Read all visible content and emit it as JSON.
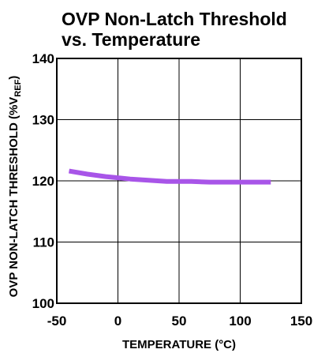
{
  "chart_data": {
    "type": "line",
    "title_lines": [
      "OVP Non-Latch Threshold",
      "vs. Temperature"
    ],
    "xlabel": "TEMPERATURE (°C)",
    "ylabel": {
      "prefix": "OVP NON-LATCH THRESHOLD (%V",
      "subscript": "REF",
      "suffix": ")"
    },
    "xlim": [
      -50,
      150
    ],
    "ylim": [
      100,
      140
    ],
    "x_ticks": [
      -50,
      0,
      50,
      100,
      150
    ],
    "y_ticks": [
      100,
      110,
      120,
      130,
      140
    ],
    "grid": true,
    "series": [
      {
        "color": "#a855e8",
        "x": [
          -40,
          -25,
          -10,
          0,
          10,
          25,
          40,
          50,
          60,
          75,
          90,
          100,
          110,
          125
        ],
        "y": [
          121.6,
          121.1,
          120.7,
          120.5,
          120.3,
          120.1,
          119.9,
          119.9,
          119.9,
          119.8,
          119.8,
          119.8,
          119.8,
          119.8
        ]
      }
    ]
  }
}
